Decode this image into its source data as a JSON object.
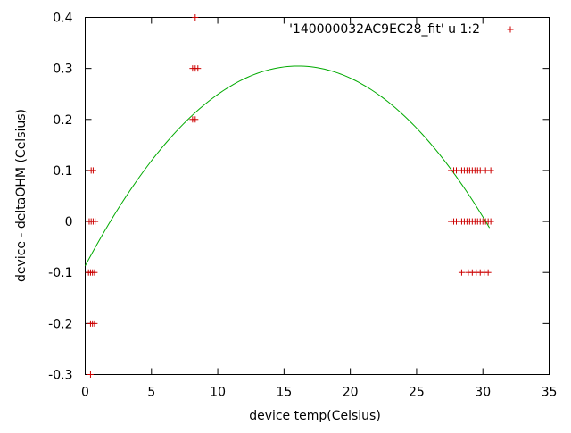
{
  "chart_data": {
    "type": "scatter",
    "title": "",
    "xlabel": "device temp(Celsius)",
    "ylabel": "device - deltaOHM (Celsius)",
    "xlim": [
      0,
      35
    ],
    "ylim": [
      -0.3,
      0.4
    ],
    "xticks": [
      0,
      5,
      10,
      15,
      20,
      25,
      30,
      35
    ],
    "yticks": [
      -0.3,
      -0.2,
      -0.1,
      0,
      0.1,
      0.2,
      0.3,
      0.4
    ],
    "xtick_labels": [
      "0",
      "5",
      "10",
      "15",
      "20",
      "25",
      "30",
      "35"
    ],
    "ytick_labels": [
      "-0.3",
      "-0.2",
      "-0.1",
      "0",
      "0.1",
      "0.2",
      "0.3",
      "0.4"
    ],
    "grid": false,
    "legend_position": "top-right",
    "series": [
      {
        "name": "'140000032AC9EC28_fit' u 1:2",
        "kind": "points",
        "marker": "plus",
        "color": "#cc0000",
        "points": [
          [
            0.4,
            -0.3
          ],
          [
            0.4,
            -0.2
          ],
          [
            0.55,
            -0.2
          ],
          [
            0.7,
            -0.2
          ],
          [
            0.25,
            -0.1
          ],
          [
            0.4,
            -0.1
          ],
          [
            0.55,
            -0.1
          ],
          [
            0.7,
            -0.1
          ],
          [
            0.3,
            0.0
          ],
          [
            0.45,
            0.0
          ],
          [
            0.6,
            0.0
          ],
          [
            0.75,
            0.0
          ],
          [
            0.45,
            0.1
          ],
          [
            0.6,
            0.1
          ],
          [
            8.1,
            0.2
          ],
          [
            8.3,
            0.2
          ],
          [
            8.1,
            0.3
          ],
          [
            8.3,
            0.3
          ],
          [
            8.5,
            0.3
          ],
          [
            8.3,
            0.4
          ],
          [
            27.6,
            0.1
          ],
          [
            27.8,
            0.1
          ],
          [
            28.0,
            0.1
          ],
          [
            28.2,
            0.1
          ],
          [
            28.4,
            0.1
          ],
          [
            28.6,
            0.1
          ],
          [
            28.8,
            0.1
          ],
          [
            29.0,
            0.1
          ],
          [
            29.2,
            0.1
          ],
          [
            29.4,
            0.1
          ],
          [
            29.6,
            0.1
          ],
          [
            29.8,
            0.1
          ],
          [
            30.2,
            0.1
          ],
          [
            30.6,
            0.1
          ],
          [
            27.6,
            0.0
          ],
          [
            27.8,
            0.0
          ],
          [
            28.0,
            0.0
          ],
          [
            28.2,
            0.0
          ],
          [
            28.4,
            0.0
          ],
          [
            28.6,
            0.0
          ],
          [
            28.8,
            0.0
          ],
          [
            29.0,
            0.0
          ],
          [
            29.2,
            0.0
          ],
          [
            29.4,
            0.0
          ],
          [
            29.6,
            0.0
          ],
          [
            29.8,
            0.0
          ],
          [
            30.0,
            0.0
          ],
          [
            30.2,
            0.0
          ],
          [
            30.4,
            0.0
          ],
          [
            30.6,
            0.0
          ],
          [
            28.4,
            -0.1
          ],
          [
            28.9,
            -0.1
          ],
          [
            29.2,
            -0.1
          ],
          [
            29.5,
            -0.1
          ],
          [
            29.8,
            -0.1
          ],
          [
            30.1,
            -0.1
          ],
          [
            30.4,
            -0.1
          ]
        ]
      },
      {
        "name": "",
        "kind": "curve",
        "color": "#00aa00",
        "x_range": [
          0,
          30.5
        ],
        "quadratic_fit": {
          "a": -0.00152,
          "b": 0.0488,
          "c": -0.087
        }
      }
    ]
  }
}
